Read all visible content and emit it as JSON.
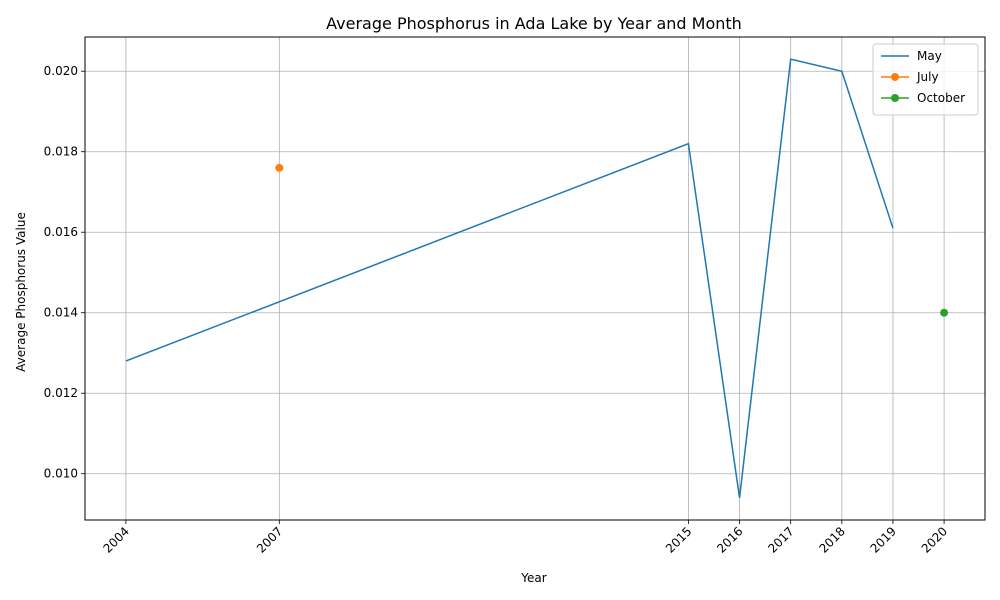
{
  "chart_data": {
    "type": "line",
    "title": "Average Phosphorus in Ada Lake by Year and Month",
    "xlabel": "Year",
    "ylabel": "Average Phosphorus Value",
    "x_ticks": [
      2004,
      2007,
      2015,
      2016,
      2017,
      2018,
      2019,
      2020
    ],
    "y_ticks": [
      0.01,
      0.012,
      0.014,
      0.016,
      0.018,
      0.02
    ],
    "y_tick_labels": [
      "0.010",
      "0.012",
      "0.014",
      "0.016",
      "0.018",
      "0.020"
    ],
    "xlim": [
      2003.2,
      2020.8
    ],
    "ylim": [
      0.00885,
      0.02085
    ],
    "grid": true,
    "legend_position": "top-right",
    "series": [
      {
        "name": "May",
        "color": "#1f77b4",
        "marker": false,
        "x": [
          2004,
          2015,
          2016,
          2017,
          2018,
          2019
        ],
        "values": [
          0.0128,
          0.0182,
          0.0094,
          0.0203,
          0.02,
          0.0161
        ]
      },
      {
        "name": "July",
        "color": "#ff7f0e",
        "marker": true,
        "x": [
          2007
        ],
        "values": [
          0.0176
        ]
      },
      {
        "name": "October",
        "color": "#2ca02c",
        "marker": true,
        "x": [
          2020
        ],
        "values": [
          0.014
        ]
      }
    ]
  }
}
